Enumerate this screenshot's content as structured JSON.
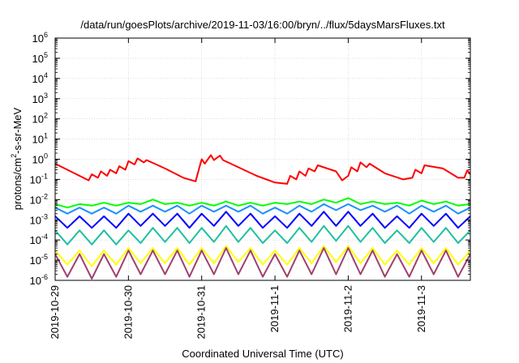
{
  "chart_data": {
    "type": "line",
    "title": "/data/run/goesPlots/archive/2019-11-03/16:00/bryn/../flux/5daysMarsFluxes.txt",
    "xlabel": "Coordinated Universal Time (UTC)",
    "ylabel": {
      "base": "protons/cm",
      "sup": "2",
      "rest": "-s-sr-MeV"
    },
    "yscale": "log",
    "ylim": [
      1e-06,
      1000000.0
    ],
    "xlim": [
      "2019-10-29T00:00",
      "2019-11-03T16:00"
    ],
    "grid": true,
    "x_ticks": [
      "2019-10-29",
      "2019-10-30",
      "2019-10-31",
      "2019-11-1",
      "2019-11-2",
      "2019-11-3"
    ],
    "y_ticks": [
      {
        "base": "10",
        "exp": "-6",
        "value": 1e-06
      },
      {
        "base": "10",
        "exp": "-5",
        "value": 1e-05
      },
      {
        "base": "10",
        "exp": "-4",
        "value": 0.0001
      },
      {
        "base": "10",
        "exp": "-3",
        "value": 0.001
      },
      {
        "base": "10",
        "exp": "-2",
        "value": 0.01
      },
      {
        "base": "10",
        "exp": "-1",
        "value": 0.1
      },
      {
        "base": "10",
        "exp": "0",
        "value": 1
      },
      {
        "base": "10",
        "exp": "1",
        "value": 10
      },
      {
        "base": "10",
        "exp": "2",
        "value": 100
      },
      {
        "base": "10",
        "exp": "3",
        "value": 1000
      },
      {
        "base": "10",
        "exp": "4",
        "value": 10000
      },
      {
        "base": "10",
        "exp": "5",
        "value": 100000
      },
      {
        "base": "10",
        "exp": "6",
        "value": 1000000
      }
    ],
    "series": [
      {
        "color": "#ff0000",
        "x": [
          "2019-10-29T00:00",
          "2019-10-29T04:00",
          "2019-10-29T08:00",
          "2019-10-29T11:00",
          "2019-10-29T12:00",
          "2019-10-29T14:00",
          "2019-10-29T15:00",
          "2019-10-29T17:00",
          "2019-10-29T18:00",
          "2019-10-29T20:00",
          "2019-10-29T21:00",
          "2019-10-29T23:00",
          "2019-10-30T00:00",
          "2019-10-30T02:00",
          "2019-10-30T03:00",
          "2019-10-30T05:00",
          "2019-10-30T06:00",
          "2019-10-30T12:00",
          "2019-10-30T18:00",
          "2019-10-30T22:00",
          "2019-10-31T00:00",
          "2019-10-31T01:00",
          "2019-10-31T03:00",
          "2019-10-31T04:00",
          "2019-10-31T06:00",
          "2019-10-31T07:00",
          "2019-10-31T12:00",
          "2019-10-31T18:00",
          "2019-11-01T00:00",
          "2019-11-01T04:00",
          "2019-11-01T05:00",
          "2019-11-01T07:00",
          "2019-11-01T08:00",
          "2019-11-01T10:00",
          "2019-11-01T11:00",
          "2019-11-01T13:00",
          "2019-11-01T14:00",
          "2019-11-01T20:00",
          "2019-11-01T22:00",
          "2019-11-02T00:00",
          "2019-11-02T01:00",
          "2019-11-02T03:00",
          "2019-11-02T04:00",
          "2019-11-02T06:00",
          "2019-11-02T07:00",
          "2019-11-02T12:00",
          "2019-11-02T18:00",
          "2019-11-02T21:00",
          "2019-11-02T22:00",
          "2019-11-03T00:00",
          "2019-11-03T01:00",
          "2019-11-03T07:00",
          "2019-11-03T12:00",
          "2019-11-03T14:00",
          "2019-11-03T15:00",
          "2019-11-03T16:00"
        ],
        "y": [
          0.6,
          0.3,
          0.15,
          0.09,
          0.18,
          0.12,
          0.25,
          0.15,
          0.3,
          0.2,
          0.45,
          0.3,
          0.8,
          0.55,
          1.1,
          0.7,
          0.9,
          0.35,
          0.12,
          0.08,
          1.0,
          0.6,
          1.6,
          0.9,
          1.5,
          0.9,
          0.4,
          0.15,
          0.07,
          0.06,
          0.15,
          0.1,
          0.25,
          0.15,
          0.35,
          0.25,
          0.5,
          0.25,
          0.09,
          0.15,
          0.4,
          0.25,
          0.7,
          0.4,
          0.6,
          0.2,
          0.1,
          0.12,
          0.3,
          0.2,
          0.5,
          0.35,
          0.12,
          0.12,
          0.28,
          0.18
        ]
      },
      {
        "color": "#00ff00",
        "x": [
          "2019-10-29T00:00",
          "2019-10-29T04:00",
          "2019-10-29T08:00",
          "2019-10-29T12:00",
          "2019-10-29T16:00",
          "2019-10-29T20:00",
          "2019-10-30T00:00",
          "2019-10-30T04:00",
          "2019-10-30T08:00",
          "2019-10-30T12:00",
          "2019-10-30T16:00",
          "2019-10-30T20:00",
          "2019-10-31T00:00",
          "2019-10-31T04:00",
          "2019-10-31T08:00",
          "2019-10-31T12:00",
          "2019-10-31T16:00",
          "2019-10-31T20:00",
          "2019-11-01T00:00",
          "2019-11-01T04:00",
          "2019-11-01T08:00",
          "2019-11-01T12:00",
          "2019-11-01T16:00",
          "2019-11-01T20:00",
          "2019-11-02T00:00",
          "2019-11-02T04:00",
          "2019-11-02T08:00",
          "2019-11-02T12:00",
          "2019-11-02T16:00",
          "2019-11-02T20:00",
          "2019-11-03T00:00",
          "2019-11-03T04:00",
          "2019-11-03T08:00",
          "2019-11-03T12:00",
          "2019-11-03T16:00"
        ],
        "y": [
          0.006,
          0.004,
          0.006,
          0.005,
          0.007,
          0.005,
          0.007,
          0.006,
          0.01,
          0.006,
          0.007,
          0.005,
          0.007,
          0.005,
          0.008,
          0.005,
          0.007,
          0.005,
          0.007,
          0.006,
          0.008,
          0.006,
          0.01,
          0.007,
          0.012,
          0.006,
          0.008,
          0.006,
          0.007,
          0.005,
          0.009,
          0.006,
          0.008,
          0.005,
          0.006
        ]
      },
      {
        "color": "#1e90ff",
        "x": [
          "2019-10-29T00:00",
          "2019-10-29T04:00",
          "2019-10-29T08:00",
          "2019-10-29T12:00",
          "2019-10-29T16:00",
          "2019-10-29T20:00",
          "2019-10-30T00:00",
          "2019-10-30T04:00",
          "2019-10-30T08:00",
          "2019-10-30T12:00",
          "2019-10-30T16:00",
          "2019-10-30T20:00",
          "2019-10-31T00:00",
          "2019-10-31T04:00",
          "2019-10-31T08:00",
          "2019-10-31T12:00",
          "2019-10-31T16:00",
          "2019-10-31T20:00",
          "2019-11-01T00:00",
          "2019-11-01T04:00",
          "2019-11-01T08:00",
          "2019-11-01T12:00",
          "2019-11-01T16:00",
          "2019-11-01T20:00",
          "2019-11-02T00:00",
          "2019-11-02T04:00",
          "2019-11-02T08:00",
          "2019-11-02T12:00",
          "2019-11-02T16:00",
          "2019-11-02T20:00",
          "2019-11-03T00:00",
          "2019-11-03T04:00",
          "2019-11-03T08:00",
          "2019-11-03T12:00",
          "2019-11-03T16:00"
        ],
        "y": [
          0.004,
          0.002,
          0.004,
          0.002,
          0.004,
          0.002,
          0.005,
          0.0025,
          0.005,
          0.0025,
          0.005,
          0.002,
          0.005,
          0.0025,
          0.005,
          0.0025,
          0.005,
          0.002,
          0.004,
          0.002,
          0.005,
          0.0025,
          0.006,
          0.003,
          0.006,
          0.003,
          0.005,
          0.0025,
          0.005,
          0.002,
          0.005,
          0.0025,
          0.005,
          0.002,
          0.004
        ]
      },
      {
        "color": "#0000ff",
        "x": [
          "2019-10-29T00:00",
          "2019-10-29T04:00",
          "2019-10-29T08:00",
          "2019-10-29T12:00",
          "2019-10-29T16:00",
          "2019-10-29T20:00",
          "2019-10-30T00:00",
          "2019-10-30T04:00",
          "2019-10-30T08:00",
          "2019-10-30T12:00",
          "2019-10-30T16:00",
          "2019-10-30T20:00",
          "2019-10-31T00:00",
          "2019-10-31T04:00",
          "2019-10-31T08:00",
          "2019-10-31T12:00",
          "2019-10-31T16:00",
          "2019-10-31T20:00",
          "2019-11-01T00:00",
          "2019-11-01T04:00",
          "2019-11-01T08:00",
          "2019-11-01T12:00",
          "2019-11-01T16:00",
          "2019-11-01T20:00",
          "2019-11-02T00:00",
          "2019-11-02T04:00",
          "2019-11-02T08:00",
          "2019-11-02T12:00",
          "2019-11-02T16:00",
          "2019-11-02T20:00",
          "2019-11-03T00:00",
          "2019-11-03T04:00",
          "2019-11-03T08:00",
          "2019-11-03T12:00",
          "2019-11-03T16:00"
        ],
        "y": [
          0.0015,
          0.0004,
          0.0015,
          0.0004,
          0.0015,
          0.0004,
          0.002,
          0.0005,
          0.002,
          0.0005,
          0.002,
          0.0004,
          0.002,
          0.0005,
          0.0025,
          0.0005,
          0.002,
          0.0004,
          0.0015,
          0.0004,
          0.002,
          0.0005,
          0.0025,
          0.0005,
          0.0025,
          0.0005,
          0.002,
          0.0004,
          0.0015,
          0.0004,
          0.002,
          0.0005,
          0.002,
          0.0004,
          0.0015
        ]
      },
      {
        "color": "#20c0a0",
        "x": [
          "2019-10-29T00:00",
          "2019-10-29T04:00",
          "2019-10-29T08:00",
          "2019-10-29T12:00",
          "2019-10-29T16:00",
          "2019-10-29T20:00",
          "2019-10-30T00:00",
          "2019-10-30T04:00",
          "2019-10-30T08:00",
          "2019-10-30T12:00",
          "2019-10-30T16:00",
          "2019-10-30T20:00",
          "2019-10-31T00:00",
          "2019-10-31T04:00",
          "2019-10-31T08:00",
          "2019-10-31T12:00",
          "2019-10-31T16:00",
          "2019-10-31T20:00",
          "2019-11-01T00:00",
          "2019-11-01T04:00",
          "2019-11-01T08:00",
          "2019-11-01T12:00",
          "2019-11-01T16:00",
          "2019-11-01T20:00",
          "2019-11-02T00:00",
          "2019-11-02T04:00",
          "2019-11-02T08:00",
          "2019-11-02T12:00",
          "2019-11-02T16:00",
          "2019-11-02T20:00",
          "2019-11-03T00:00",
          "2019-11-03T04:00",
          "2019-11-03T08:00",
          "2019-11-03T12:00",
          "2019-11-03T16:00"
        ],
        "y": [
          0.0003,
          6e-05,
          0.0003,
          6e-05,
          0.0003,
          6e-05,
          0.0003,
          7e-05,
          0.0004,
          8e-05,
          0.0004,
          7e-05,
          0.0004,
          8e-05,
          0.0005,
          8e-05,
          0.0004,
          7e-05,
          0.0003,
          7e-05,
          0.0004,
          8e-05,
          0.0005,
          9e-05,
          0.0005,
          8e-05,
          0.0004,
          7e-05,
          0.0003,
          7e-05,
          0.0004,
          8e-05,
          0.0004,
          7e-05,
          0.0003
        ]
      },
      {
        "color": "#ffff00",
        "x": [
          "2019-10-29T00:00",
          "2019-10-29T04:00",
          "2019-10-29T08:00",
          "2019-10-29T12:00",
          "2019-10-29T16:00",
          "2019-10-29T20:00",
          "2019-10-30T00:00",
          "2019-10-30T04:00",
          "2019-10-30T08:00",
          "2019-10-30T12:00",
          "2019-10-30T16:00",
          "2019-10-30T20:00",
          "2019-10-31T00:00",
          "2019-10-31T04:00",
          "2019-10-31T08:00",
          "2019-10-31T12:00",
          "2019-10-31T16:00",
          "2019-10-31T20:00",
          "2019-11-01T00:00",
          "2019-11-01T04:00",
          "2019-11-01T08:00",
          "2019-11-01T12:00",
          "2019-11-01T16:00",
          "2019-11-01T20:00",
          "2019-11-02T00:00",
          "2019-11-02T04:00",
          "2019-11-02T08:00",
          "2019-11-02T12:00",
          "2019-11-02T16:00",
          "2019-11-02T20:00",
          "2019-11-03T00:00",
          "2019-11-03T04:00",
          "2019-11-03T08:00",
          "2019-11-03T12:00",
          "2019-11-03T16:00"
        ],
        "y": [
          3e-05,
          6e-06,
          3e-05,
          5e-06,
          3e-05,
          6e-06,
          4e-05,
          7e-06,
          4e-05,
          7e-06,
          4e-05,
          6e-06,
          4e-05,
          7e-06,
          5e-05,
          8e-06,
          4e-05,
          6e-06,
          3e-05,
          6e-06,
          4e-05,
          7e-06,
          5e-05,
          8e-06,
          5e-05,
          7e-06,
          4e-05,
          6e-06,
          3e-05,
          6e-06,
          4e-05,
          7e-06,
          4e-05,
          6e-06,
          3e-05
        ]
      },
      {
        "color": "#a04070",
        "x": [
          "2019-10-29T00:00",
          "2019-10-29T04:00",
          "2019-10-29T08:00",
          "2019-10-29T12:00",
          "2019-10-29T16:00",
          "2019-10-29T20:00",
          "2019-10-30T00:00",
          "2019-10-30T04:00",
          "2019-10-30T08:00",
          "2019-10-30T12:00",
          "2019-10-30T16:00",
          "2019-10-30T20:00",
          "2019-10-31T00:00",
          "2019-10-31T04:00",
          "2019-10-31T08:00",
          "2019-10-31T12:00",
          "2019-10-31T16:00",
          "2019-10-31T20:00",
          "2019-11-01T00:00",
          "2019-11-01T04:00",
          "2019-11-01T08:00",
          "2019-11-01T12:00",
          "2019-11-01T16:00",
          "2019-11-01T20:00",
          "2019-11-02T00:00",
          "2019-11-02T04:00",
          "2019-11-02T08:00",
          "2019-11-02T12:00",
          "2019-11-02T16:00",
          "2019-11-02T20:00",
          "2019-11-03T00:00",
          "2019-11-03T04:00",
          "2019-11-03T08:00",
          "2019-11-03T12:00",
          "2019-11-03T16:00"
        ],
        "y": [
          2e-05,
          1.5e-06,
          2e-05,
          1.2e-06,
          2e-05,
          1.5e-06,
          3e-05,
          2e-06,
          3e-05,
          2e-06,
          3e-05,
          1.5e-06,
          3e-05,
          2e-06,
          4e-05,
          2e-06,
          3e-05,
          1.5e-06,
          2e-05,
          1.5e-06,
          3e-05,
          2e-06,
          4e-05,
          2e-06,
          4e-05,
          2e-06,
          3e-05,
          1.5e-06,
          2e-05,
          1.5e-06,
          3e-05,
          2e-06,
          3e-05,
          1.5e-06,
          2e-05
        ]
      }
    ]
  }
}
